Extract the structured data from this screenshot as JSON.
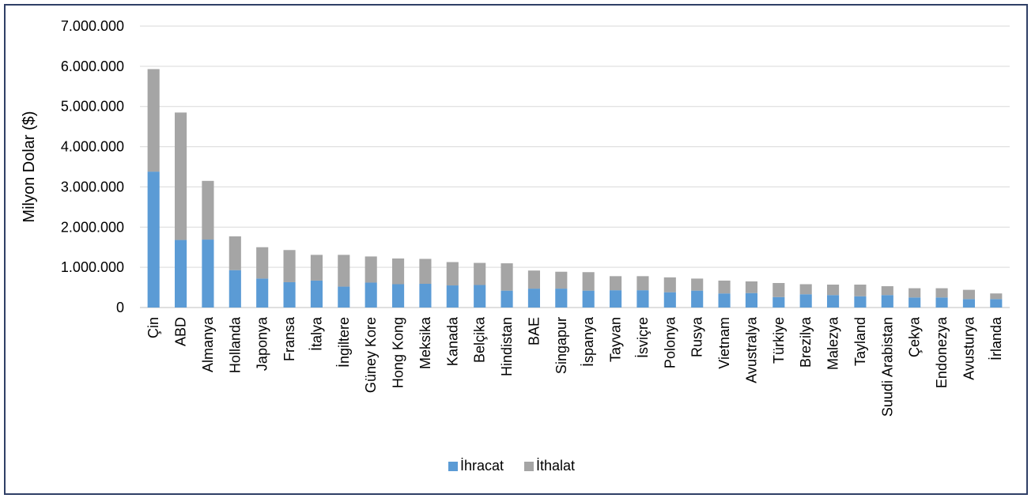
{
  "chart_data": {
    "type": "bar",
    "stacked": true,
    "title": "",
    "xlabel": "",
    "ylabel": "Milyon Dolar ($)",
    "ylim": [
      0,
      7000000
    ],
    "yticks": [
      0,
      1000000,
      2000000,
      3000000,
      4000000,
      5000000,
      6000000,
      7000000
    ],
    "ytick_labels": [
      "0",
      "1.000.000",
      "2.000.000",
      "3.000.000",
      "4.000.000",
      "5.000.000",
      "6.000.000",
      "7.000.000"
    ],
    "grid": true,
    "legend_position": "bottom",
    "categories": [
      "Çin",
      "ABD",
      "Almanya",
      "Hollanda",
      "Japonya",
      "Fransa",
      "İtalya",
      "İngiltere",
      "Güney Kore",
      "Hong Kong",
      "Meksika",
      "Kanada",
      "Belçika",
      "Hindistan",
      "BAE",
      "Singapur",
      "İspanya",
      "Tayvan",
      "İsviçre",
      "Polonya",
      "Rusya",
      "Vietnam",
      "Avustralya",
      "Türkiye",
      "Brezilya",
      "Malezya",
      "Tayland",
      "Suudi Arabistan",
      "Çekya",
      "Endonezya",
      "Avusturya",
      "İrlanda"
    ],
    "series": [
      {
        "name": "İhracat",
        "color": "#5b9bd5",
        "values": [
          3380000,
          1680000,
          1690000,
          930000,
          720000,
          630000,
          670000,
          520000,
          620000,
          580000,
          590000,
          550000,
          560000,
          420000,
          470000,
          470000,
          420000,
          430000,
          430000,
          380000,
          420000,
          350000,
          360000,
          260000,
          330000,
          310000,
          280000,
          310000,
          250000,
          250000,
          210000,
          210000
        ]
      },
      {
        "name": "İthalat",
        "color": "#a5a5a5",
        "values": [
          2550000,
          3170000,
          1460000,
          840000,
          780000,
          800000,
          640000,
          790000,
          650000,
          640000,
          620000,
          580000,
          550000,
          680000,
          450000,
          420000,
          460000,
          350000,
          350000,
          370000,
          300000,
          320000,
          290000,
          350000,
          250000,
          260000,
          290000,
          220000,
          230000,
          230000,
          230000,
          140000
        ]
      }
    ]
  }
}
